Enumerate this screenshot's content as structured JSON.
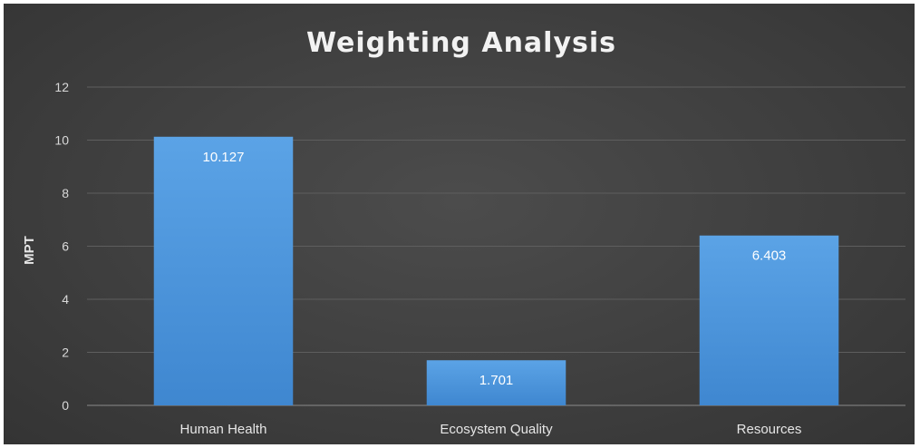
{
  "chart_data": {
    "type": "bar",
    "title": "Weighting Analysis",
    "xlabel": "",
    "ylabel": "MPT",
    "categories": [
      "Human Health",
      "Ecosystem Quality",
      "Resources"
    ],
    "values": [
      10.127,
      1.701,
      6.403
    ],
    "data_labels": [
      "10.127",
      "1.701",
      "6.403"
    ],
    "ylim": [
      0,
      12
    ],
    "yticks": [
      0,
      2,
      4,
      6,
      8,
      10,
      12
    ],
    "grid": true,
    "legend": "none",
    "colors": {
      "bar_top": "#5ba3e6",
      "bar_bottom": "#3f87d0",
      "background": "#404040",
      "text": "#e6e6e6"
    }
  }
}
